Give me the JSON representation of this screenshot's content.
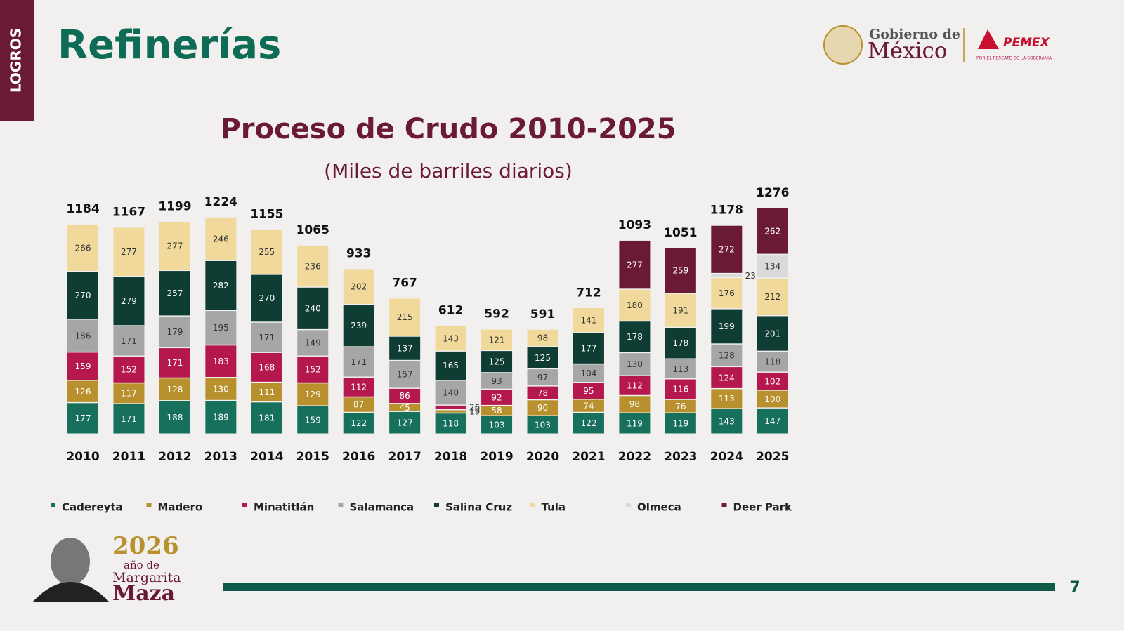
{
  "header": {
    "tab": "LOGROS",
    "title": "Refinerías",
    "gov_line1": "Gobierno de",
    "gov_line2": "México",
    "pemex": "PEMEX",
    "pemex_tagline": "POR EL RESCATE DE LA SOBERANÍA"
  },
  "chart_data": {
    "type": "stacked_bar",
    "title": "Proceso de Crudo 2010-2025",
    "subtitle": "(Miles de barriles diarios)",
    "categories": [
      "2010",
      "2011",
      "2012",
      "2013",
      "2014",
      "2015",
      "2016",
      "2017",
      "2018",
      "2019",
      "2020",
      "2021",
      "2022",
      "2023",
      "2024",
      "2025"
    ],
    "totals": [
      1184,
      1167,
      1199,
      1224,
      1155,
      1065,
      933,
      767,
      612,
      592,
      591,
      712,
      1093,
      1051,
      1178,
      1276
    ],
    "series": [
      {
        "name": "Cadereyta",
        "color": "#16705c",
        "values": [
          177,
          171,
          188,
          189,
          181,
          159,
          122,
          127,
          118,
          103,
          103,
          122,
          119,
          119,
          143,
          147
        ]
      },
      {
        "name": "Madero",
        "color": "#b8912e",
        "values": [
          126,
          117,
          128,
          130,
          111,
          129,
          87,
          45,
          19,
          58,
          90,
          74,
          98,
          76,
          113,
          100
        ]
      },
      {
        "name": "Minatitlán",
        "color": "#b5174f",
        "values": [
          159,
          152,
          171,
          183,
          168,
          152,
          112,
          86,
          26,
          92,
          78,
          95,
          112,
          116,
          124,
          102
        ]
      },
      {
        "name": "Salamanca",
        "color": "#a6a6a6",
        "values": [
          186,
          171,
          179,
          195,
          171,
          149,
          171,
          157,
          140,
          93,
          97,
          104,
          130,
          113,
          128,
          118
        ]
      },
      {
        "name": "Salina Cruz",
        "color": "#0f3d33",
        "values": [
          270,
          279,
          257,
          282,
          270,
          240,
          239,
          137,
          165,
          125,
          125,
          177,
          178,
          178,
          199,
          201
        ]
      },
      {
        "name": "Tula",
        "color": "#f0d99a",
        "values": [
          266,
          277,
          277,
          246,
          255,
          236,
          202,
          215,
          143,
          121,
          98,
          141,
          180,
          191,
          176,
          212
        ]
      },
      {
        "name": "Olmeca",
        "color": "#dadada",
        "values": [
          null,
          null,
          null,
          null,
          null,
          null,
          null,
          null,
          null,
          null,
          null,
          null,
          null,
          null,
          23,
          134
        ]
      },
      {
        "name": "Deer Park",
        "color": "#6b1a35",
        "values": [
          null,
          null,
          null,
          null,
          null,
          null,
          null,
          null,
          null,
          null,
          null,
          null,
          277,
          259,
          272,
          262
        ]
      }
    ]
  },
  "footer": {
    "year": "2026",
    "line1": "año de",
    "line2": "Margarita",
    "line3": "Maza",
    "page": "7"
  }
}
